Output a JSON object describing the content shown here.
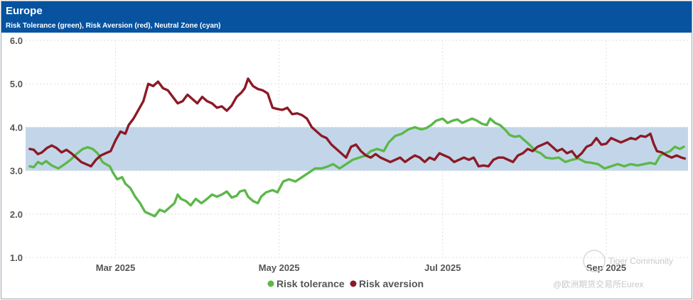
{
  "header": {
    "title": "Europe",
    "subtitle": "Risk Tolerance (green), Risk Aversion (red), Neutral Zone (cyan)"
  },
  "colors": {
    "header_bg": "#0753a0",
    "risk_tolerance": "#5cb84a",
    "risk_aversion": "#8b1a26",
    "neutral_zone": "#c3d6e9"
  },
  "watermark": {
    "line1": "Tiger Community",
    "line2": "@欧洲期货交易所Eurex"
  },
  "chart_data": {
    "type": "line",
    "ylim": [
      1.0,
      6.0
    ],
    "yticks": [
      "6.0",
      "5.0",
      "4.0",
      "3.0",
      "2.0",
      "1.0"
    ],
    "xticks": [
      {
        "label": "Mar 2025",
        "x": 1.0
      },
      {
        "label": "May 2025",
        "x": 3.0
      },
      {
        "label": "Jul 2025",
        "x": 5.0
      },
      {
        "label": "Sep 2025",
        "x": 7.0
      }
    ],
    "xlim": [
      -0.1,
      8.0
    ],
    "neutral_zone": [
      3.0,
      4.0
    ],
    "grid": true,
    "legend_position": "bottom-center",
    "series": [
      {
        "name": "Risk tolerance",
        "color": "#5cb84a",
        "points": [
          [
            -0.05,
            3.1
          ],
          [
            0.0,
            3.08
          ],
          [
            0.05,
            3.2
          ],
          [
            0.1,
            3.15
          ],
          [
            0.15,
            3.22
          ],
          [
            0.22,
            3.12
          ],
          [
            0.3,
            3.05
          ],
          [
            0.38,
            3.15
          ],
          [
            0.45,
            3.25
          ],
          [
            0.52,
            3.38
          ],
          [
            0.6,
            3.5
          ],
          [
            0.66,
            3.54
          ],
          [
            0.72,
            3.5
          ],
          [
            0.78,
            3.4
          ],
          [
            0.84,
            3.2
          ],
          [
            0.88,
            3.15
          ],
          [
            0.93,
            3.1
          ],
          [
            0.97,
            2.95
          ],
          [
            1.02,
            2.8
          ],
          [
            1.08,
            2.85
          ],
          [
            1.12,
            2.7
          ],
          [
            1.18,
            2.6
          ],
          [
            1.24,
            2.4
          ],
          [
            1.3,
            2.25
          ],
          [
            1.36,
            2.05
          ],
          [
            1.42,
            2.0
          ],
          [
            1.48,
            1.95
          ],
          [
            1.54,
            2.1
          ],
          [
            1.6,
            2.05
          ],
          [
            1.66,
            2.15
          ],
          [
            1.72,
            2.25
          ],
          [
            1.76,
            2.45
          ],
          [
            1.8,
            2.35
          ],
          [
            1.86,
            2.3
          ],
          [
            1.92,
            2.2
          ],
          [
            1.98,
            2.35
          ],
          [
            2.05,
            2.25
          ],
          [
            2.12,
            2.35
          ],
          [
            2.18,
            2.45
          ],
          [
            2.24,
            2.4
          ],
          [
            2.3,
            2.45
          ],
          [
            2.36,
            2.52
          ],
          [
            2.42,
            2.38
          ],
          [
            2.48,
            2.42
          ],
          [
            2.52,
            2.52
          ],
          [
            2.58,
            2.55
          ],
          [
            2.62,
            2.4
          ],
          [
            2.68,
            2.3
          ],
          [
            2.74,
            2.25
          ],
          [
            2.78,
            2.4
          ],
          [
            2.84,
            2.5
          ],
          [
            2.92,
            2.55
          ],
          [
            2.98,
            2.5
          ],
          [
            3.05,
            2.75
          ],
          [
            3.12,
            2.8
          ],
          [
            3.2,
            2.75
          ],
          [
            3.28,
            2.85
          ],
          [
            3.36,
            2.95
          ],
          [
            3.44,
            3.05
          ],
          [
            3.52,
            3.05
          ],
          [
            3.6,
            3.1
          ],
          [
            3.66,
            3.15
          ],
          [
            3.74,
            3.05
          ],
          [
            3.82,
            3.15
          ],
          [
            3.9,
            3.25
          ],
          [
            3.98,
            3.3
          ],
          [
            4.06,
            3.35
          ],
          [
            4.12,
            3.45
          ],
          [
            4.2,
            3.5
          ],
          [
            4.28,
            3.45
          ],
          [
            4.34,
            3.65
          ],
          [
            4.42,
            3.8
          ],
          [
            4.5,
            3.85
          ],
          [
            4.58,
            3.95
          ],
          [
            4.66,
            4.0
          ],
          [
            4.74,
            3.95
          ],
          [
            4.8,
            3.98
          ],
          [
            4.86,
            4.05
          ],
          [
            4.92,
            4.15
          ],
          [
            5.0,
            4.2
          ],
          [
            5.06,
            4.1
          ],
          [
            5.12,
            4.15
          ],
          [
            5.18,
            4.18
          ],
          [
            5.24,
            4.1
          ],
          [
            5.3,
            4.15
          ],
          [
            5.36,
            4.2
          ],
          [
            5.42,
            4.15
          ],
          [
            5.48,
            4.08
          ],
          [
            5.54,
            4.05
          ],
          [
            5.58,
            4.2
          ],
          [
            5.64,
            4.1
          ],
          [
            5.7,
            4.05
          ],
          [
            5.76,
            3.95
          ],
          [
            5.82,
            3.82
          ],
          [
            5.88,
            3.78
          ],
          [
            5.94,
            3.8
          ],
          [
            6.0,
            3.7
          ],
          [
            6.06,
            3.6
          ],
          [
            6.14,
            3.45
          ],
          [
            6.2,
            3.4
          ],
          [
            6.26,
            3.3
          ],
          [
            6.34,
            3.28
          ],
          [
            6.42,
            3.3
          ],
          [
            6.5,
            3.2
          ],
          [
            6.58,
            3.25
          ],
          [
            6.66,
            3.28
          ],
          [
            6.74,
            3.2
          ],
          [
            6.82,
            3.18
          ],
          [
            6.9,
            3.15
          ],
          [
            6.98,
            3.05
          ],
          [
            7.06,
            3.1
          ],
          [
            7.14,
            3.15
          ],
          [
            7.22,
            3.1
          ],
          [
            7.3,
            3.15
          ],
          [
            7.38,
            3.12
          ],
          [
            7.46,
            3.15
          ],
          [
            7.54,
            3.18
          ],
          [
            7.6,
            3.15
          ],
          [
            7.66,
            3.35
          ],
          [
            7.72,
            3.4
          ],
          [
            7.78,
            3.45
          ],
          [
            7.84,
            3.55
          ],
          [
            7.9,
            3.5
          ],
          [
            7.95,
            3.55
          ]
        ]
      },
      {
        "name": "Risk aversion",
        "color": "#8b1a26",
        "points": [
          [
            -0.05,
            3.5
          ],
          [
            0.0,
            3.48
          ],
          [
            0.05,
            3.38
          ],
          [
            0.1,
            3.42
          ],
          [
            0.16,
            3.52
          ],
          [
            0.22,
            3.58
          ],
          [
            0.28,
            3.52
          ],
          [
            0.34,
            3.42
          ],
          [
            0.4,
            3.48
          ],
          [
            0.46,
            3.4
          ],
          [
            0.52,
            3.3
          ],
          [
            0.58,
            3.2
          ],
          [
            0.64,
            3.15
          ],
          [
            0.7,
            3.1
          ],
          [
            0.76,
            3.25
          ],
          [
            0.82,
            3.35
          ],
          [
            0.88,
            3.4
          ],
          [
            0.94,
            3.45
          ],
          [
            1.0,
            3.7
          ],
          [
            1.06,
            3.9
          ],
          [
            1.12,
            3.85
          ],
          [
            1.16,
            4.05
          ],
          [
            1.22,
            4.2
          ],
          [
            1.28,
            4.4
          ],
          [
            1.34,
            4.6
          ],
          [
            1.4,
            5.0
          ],
          [
            1.46,
            4.95
          ],
          [
            1.52,
            5.05
          ],
          [
            1.58,
            4.9
          ],
          [
            1.64,
            4.85
          ],
          [
            1.7,
            4.7
          ],
          [
            1.76,
            4.55
          ],
          [
            1.82,
            4.6
          ],
          [
            1.88,
            4.75
          ],
          [
            1.94,
            4.65
          ],
          [
            2.0,
            4.55
          ],
          [
            2.06,
            4.7
          ],
          [
            2.12,
            4.6
          ],
          [
            2.18,
            4.55
          ],
          [
            2.24,
            4.45
          ],
          [
            2.3,
            4.48
          ],
          [
            2.36,
            4.38
          ],
          [
            2.42,
            4.5
          ],
          [
            2.48,
            4.7
          ],
          [
            2.54,
            4.8
          ],
          [
            2.58,
            4.9
          ],
          [
            2.62,
            5.12
          ],
          [
            2.68,
            4.95
          ],
          [
            2.74,
            4.88
          ],
          [
            2.8,
            4.85
          ],
          [
            2.86,
            4.78
          ],
          [
            2.92,
            4.45
          ],
          [
            2.98,
            4.42
          ],
          [
            3.04,
            4.4
          ],
          [
            3.1,
            4.45
          ],
          [
            3.16,
            4.3
          ],
          [
            3.22,
            4.32
          ],
          [
            3.28,
            4.28
          ],
          [
            3.34,
            4.2
          ],
          [
            3.4,
            4.0
          ],
          [
            3.46,
            3.9
          ],
          [
            3.52,
            3.8
          ],
          [
            3.58,
            3.75
          ],
          [
            3.64,
            3.6
          ],
          [
            3.7,
            3.5
          ],
          [
            3.76,
            3.4
          ],
          [
            3.82,
            3.3
          ],
          [
            3.88,
            3.55
          ],
          [
            3.94,
            3.6
          ],
          [
            4.0,
            3.45
          ],
          [
            4.06,
            3.35
          ],
          [
            4.12,
            3.3
          ],
          [
            4.18,
            3.38
          ],
          [
            4.24,
            3.3
          ],
          [
            4.3,
            3.25
          ],
          [
            4.36,
            3.2
          ],
          [
            4.42,
            3.25
          ],
          [
            4.48,
            3.3
          ],
          [
            4.54,
            3.2
          ],
          [
            4.6,
            3.28
          ],
          [
            4.66,
            3.35
          ],
          [
            4.72,
            3.3
          ],
          [
            4.78,
            3.2
          ],
          [
            4.84,
            3.3
          ],
          [
            4.9,
            3.25
          ],
          [
            4.96,
            3.4
          ],
          [
            5.02,
            3.35
          ],
          [
            5.08,
            3.3
          ],
          [
            5.14,
            3.2
          ],
          [
            5.2,
            3.25
          ],
          [
            5.26,
            3.3
          ],
          [
            5.32,
            3.25
          ],
          [
            5.38,
            3.3
          ],
          [
            5.44,
            3.1
          ],
          [
            5.5,
            3.12
          ],
          [
            5.56,
            3.1
          ],
          [
            5.62,
            3.25
          ],
          [
            5.68,
            3.3
          ],
          [
            5.74,
            3.3
          ],
          [
            5.8,
            3.25
          ],
          [
            5.86,
            3.2
          ],
          [
            5.92,
            3.35
          ],
          [
            5.98,
            3.4
          ],
          [
            6.04,
            3.5
          ],
          [
            6.1,
            3.45
          ],
          [
            6.16,
            3.55
          ],
          [
            6.22,
            3.6
          ],
          [
            6.28,
            3.65
          ],
          [
            6.34,
            3.55
          ],
          [
            6.4,
            3.45
          ],
          [
            6.46,
            3.5
          ],
          [
            6.52,
            3.4
          ],
          [
            6.58,
            3.45
          ],
          [
            6.64,
            3.3
          ],
          [
            6.7,
            3.4
          ],
          [
            6.76,
            3.55
          ],
          [
            6.82,
            3.6
          ],
          [
            6.88,
            3.75
          ],
          [
            6.94,
            3.6
          ],
          [
            7.0,
            3.62
          ],
          [
            7.06,
            3.75
          ],
          [
            7.12,
            3.7
          ],
          [
            7.18,
            3.65
          ],
          [
            7.24,
            3.7
          ],
          [
            7.3,
            3.75
          ],
          [
            7.36,
            3.72
          ],
          [
            7.42,
            3.8
          ],
          [
            7.48,
            3.78
          ],
          [
            7.54,
            3.85
          ],
          [
            7.58,
            3.62
          ],
          [
            7.62,
            3.45
          ],
          [
            7.68,
            3.42
          ],
          [
            7.74,
            3.35
          ],
          [
            7.8,
            3.3
          ],
          [
            7.86,
            3.35
          ],
          [
            7.92,
            3.3
          ],
          [
            7.96,
            3.28
          ]
        ]
      }
    ]
  }
}
